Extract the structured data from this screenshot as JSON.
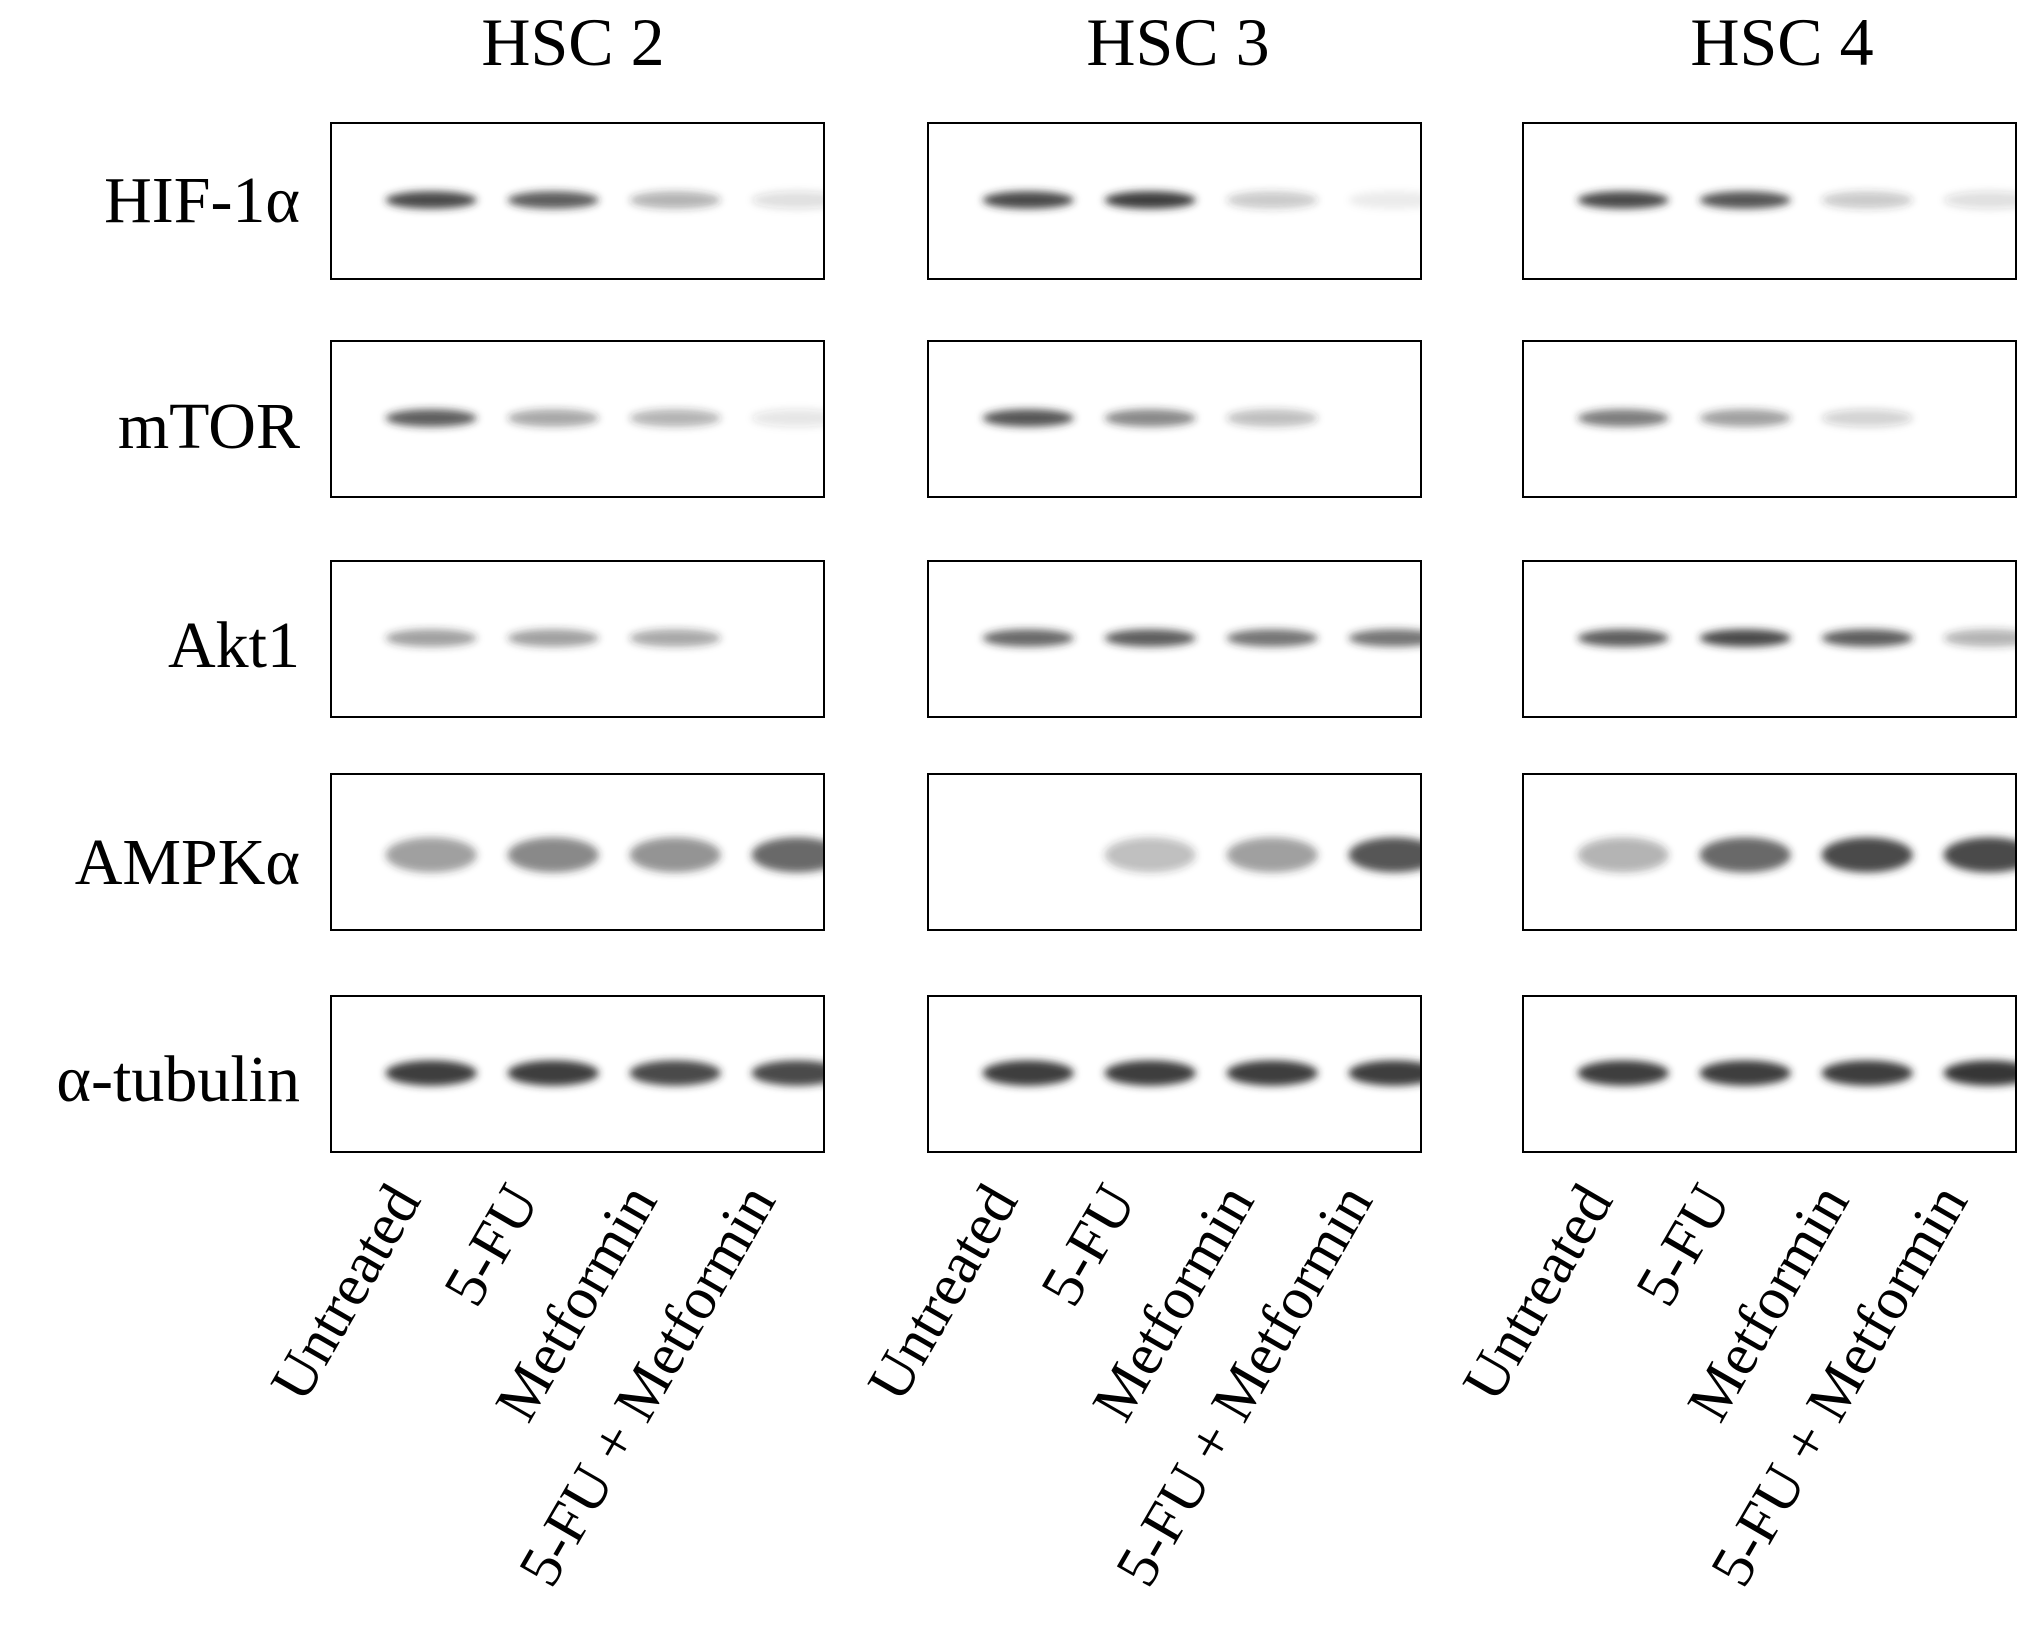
{
  "figure": {
    "columns": [
      {
        "title": "HSC 2"
      },
      {
        "title": "HSC 3"
      },
      {
        "title": "HSC 4"
      }
    ],
    "rows": [
      {
        "label": "HIF-1α"
      },
      {
        "label": "mTOR"
      },
      {
        "label": "Akt1"
      },
      {
        "label": "AMPKα"
      },
      {
        "label": "α-tubulin"
      }
    ],
    "lanes": [
      "Untreated",
      "5-FU",
      "Metformin",
      "5-FU + Metformin"
    ],
    "band_intensity": {
      "HSC 2": {
        "HIF-1α": [
          0.85,
          0.75,
          0.35,
          0.15
        ],
        "mTOR": [
          0.75,
          0.4,
          0.35,
          0.12
        ],
        "Akt1": [
          0.45,
          0.45,
          0.4,
          0.0
        ],
        "AMPKα": [
          0.45,
          0.55,
          0.5,
          0.7
        ],
        "α-tubulin": [
          0.9,
          0.9,
          0.85,
          0.85
        ]
      },
      "HSC 3": {
        "HIF-1α": [
          0.85,
          0.9,
          0.25,
          0.08
        ],
        "mTOR": [
          0.8,
          0.55,
          0.3,
          0.0
        ],
        "Akt1": [
          0.7,
          0.75,
          0.65,
          0.65
        ],
        "AMPKα": [
          0.0,
          0.3,
          0.45,
          0.8
        ],
        "α-tubulin": [
          0.9,
          0.9,
          0.9,
          0.9
        ]
      },
      "HSC 4": {
        "HIF-1α": [
          0.85,
          0.8,
          0.25,
          0.15
        ],
        "mTOR": [
          0.6,
          0.45,
          0.2,
          0.0
        ],
        "Akt1": [
          0.75,
          0.85,
          0.75,
          0.35
        ],
        "AMPKα": [
          0.35,
          0.7,
          0.85,
          0.85
        ],
        "α-tubulin": [
          0.9,
          0.9,
          0.9,
          0.95
        ]
      }
    },
    "colors": {
      "band": "#2a2a2a",
      "border": "#000000",
      "background": "#ffffff"
    }
  }
}
